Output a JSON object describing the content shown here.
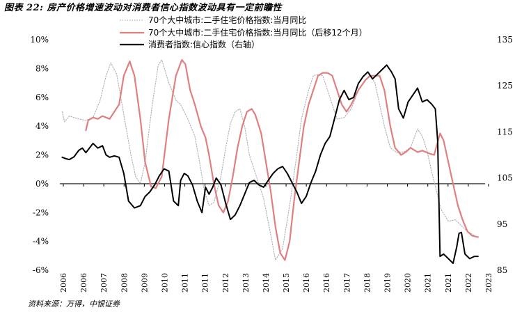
{
  "figure": {
    "title": "图表 22: 房产价格增速波动对消费者信心指数波动具有一定前瞻性",
    "source": "资料来源：万得，中银证券"
  },
  "chart_data": {
    "type": "line",
    "y_left": {
      "ticks": [
        "10%",
        "8%",
        "6%",
        "4%",
        "2%",
        "0%",
        "-2%",
        "-4%",
        "-6%"
      ],
      "range": [
        -6,
        10
      ]
    },
    "y_right": {
      "ticks": [
        "135",
        "125",
        "115",
        "105",
        "95",
        "85"
      ],
      "range": [
        85,
        135
      ]
    },
    "x_ticks": [
      "2006",
      "2006",
      "2007",
      "2008",
      "2009",
      "2010",
      "2011",
      "2011",
      "2012",
      "2013",
      "2014",
      "2015",
      "2016",
      "2016",
      "2017",
      "2018",
      "2019",
      "2020",
      "2021",
      "2021",
      "2022",
      "2023"
    ],
    "grid": false,
    "legend_position": "top",
    "series": [
      {
        "name": "70个大中城市:二手住宅价格指数:当月同比",
        "axis": "left",
        "color": "#b4b4be",
        "style": "dotted",
        "points": [
          [
            2006.0,
            5.0
          ],
          [
            2006.1,
            4.3
          ],
          [
            2006.3,
            4.7
          ],
          [
            2006.7,
            4.5
          ],
          [
            2007.0,
            4.4
          ],
          [
            2007.3,
            4.6
          ],
          [
            2007.6,
            5.8
          ],
          [
            2007.85,
            7.5
          ],
          [
            2008.05,
            8.4
          ],
          [
            2008.3,
            7.6
          ],
          [
            2008.6,
            4.8
          ],
          [
            2008.9,
            2.0
          ],
          [
            2009.1,
            0.5
          ],
          [
            2009.3,
            0.0
          ],
          [
            2009.5,
            1.5
          ],
          [
            2009.8,
            5.5
          ],
          [
            2010.05,
            8.2
          ],
          [
            2010.2,
            8.6
          ],
          [
            2010.5,
            7.0
          ],
          [
            2010.8,
            5.8
          ],
          [
            2011.0,
            5.5
          ],
          [
            2011.3,
            4.5
          ],
          [
            2011.6,
            3.3
          ],
          [
            2011.8,
            1.5
          ],
          [
            2012.0,
            -0.5
          ],
          [
            2012.2,
            -1.5
          ],
          [
            2012.4,
            -1.3
          ],
          [
            2012.7,
            0.5
          ],
          [
            2012.9,
            2.5
          ],
          [
            2013.1,
            4.2
          ],
          [
            2013.3,
            5.0
          ],
          [
            2013.5,
            5.2
          ],
          [
            2013.7,
            4.0
          ],
          [
            2013.9,
            2.0
          ],
          [
            2014.2,
            0.5
          ],
          [
            2014.5,
            -1.0
          ],
          [
            2014.8,
            -3.5
          ],
          [
            2015.0,
            -5.3
          ],
          [
            2015.3,
            -4.5
          ],
          [
            2015.6,
            -1.5
          ],
          [
            2015.9,
            2.0
          ],
          [
            2016.1,
            4.5
          ],
          [
            2016.4,
            6.5
          ],
          [
            2016.6,
            7.5
          ],
          [
            2016.8,
            7.6
          ],
          [
            2017.0,
            7.5
          ],
          [
            2017.3,
            6.0
          ],
          [
            2017.6,
            4.5
          ],
          [
            2017.9,
            4.6
          ],
          [
            2018.2,
            5.2
          ],
          [
            2018.5,
            6.5
          ],
          [
            2018.8,
            7.2
          ],
          [
            2019.0,
            7.5
          ],
          [
            2019.2,
            7.0
          ],
          [
            2019.4,
            5.5
          ],
          [
            2019.6,
            4.0
          ],
          [
            2019.85,
            2.5
          ],
          [
            2020.1,
            2.2
          ],
          [
            2020.4,
            2.2
          ],
          [
            2020.7,
            2.5
          ],
          [
            2021.0,
            3.8
          ],
          [
            2021.2,
            3.3
          ],
          [
            2021.4,
            2.3
          ],
          [
            2021.6,
            0.8
          ],
          [
            2021.8,
            -0.5
          ],
          [
            2022.0,
            -1.8
          ],
          [
            2022.3,
            -2.6
          ],
          [
            2022.6,
            -2.5
          ],
          [
            2022.9,
            -3.0
          ],
          [
            2023.1,
            -3.3
          ],
          [
            2023.4,
            -3.6
          ]
        ]
      },
      {
        "name": "70个大中城市:二手住宅价格指数:当月同比（后移12个月）",
        "axis": "left",
        "color": "#e07f80",
        "style": "solid",
        "points": [
          [
            2007.0,
            3.7
          ],
          [
            2007.1,
            4.4
          ],
          [
            2007.3,
            4.6
          ],
          [
            2007.5,
            4.5
          ],
          [
            2007.7,
            4.7
          ],
          [
            2008.0,
            4.5
          ],
          [
            2008.2,
            5.0
          ],
          [
            2008.4,
            5.5
          ],
          [
            2008.6,
            7.5
          ],
          [
            2008.85,
            8.5
          ],
          [
            2009.05,
            7.5
          ],
          [
            2009.3,
            4.5
          ],
          [
            2009.5,
            1.5
          ],
          [
            2009.75,
            -0.2
          ],
          [
            2009.95,
            -0.3
          ],
          [
            2010.2,
            0.5
          ],
          [
            2010.5,
            4.5
          ],
          [
            2010.8,
            7.5
          ],
          [
            2011.05,
            8.6
          ],
          [
            2011.2,
            8.3
          ],
          [
            2011.4,
            6.5
          ],
          [
            2011.6,
            5.5
          ],
          [
            2011.85,
            4.0
          ],
          [
            2012.05,
            3.2
          ],
          [
            2012.2,
            2.0
          ],
          [
            2012.4,
            0.0
          ],
          [
            2012.6,
            -1.5
          ],
          [
            2012.8,
            -2.0
          ],
          [
            2013.0,
            -1.2
          ],
          [
            2013.2,
            0.5
          ],
          [
            2013.4,
            2.5
          ],
          [
            2013.6,
            4.0
          ],
          [
            2013.8,
            5.0
          ],
          [
            2014.0,
            5.2
          ],
          [
            2014.15,
            4.8
          ],
          [
            2014.4,
            3.5
          ],
          [
            2014.6,
            1.5
          ],
          [
            2014.8,
            -0.5
          ],
          [
            2015.0,
            -3.0
          ],
          [
            2015.2,
            -4.8
          ],
          [
            2015.4,
            -5.3
          ],
          [
            2015.6,
            -4.0
          ],
          [
            2015.8,
            -1.0
          ],
          [
            2016.0,
            1.5
          ],
          [
            2016.2,
            4.0
          ],
          [
            2016.4,
            5.5
          ],
          [
            2016.6,
            6.5
          ],
          [
            2016.8,
            7.5
          ],
          [
            2017.0,
            7.7
          ],
          [
            2017.2,
            7.7
          ],
          [
            2017.4,
            7.5
          ],
          [
            2017.6,
            6.5
          ],
          [
            2017.8,
            5.5
          ],
          [
            2018.0,
            5.0
          ],
          [
            2018.2,
            5.5
          ],
          [
            2018.5,
            6.5
          ],
          [
            2018.8,
            7.2
          ],
          [
            2019.0,
            7.5
          ],
          [
            2019.2,
            7.5
          ],
          [
            2019.4,
            7.5
          ],
          [
            2019.6,
            6.5
          ],
          [
            2019.85,
            4.0
          ],
          [
            2020.05,
            2.5
          ],
          [
            2020.3,
            2.0
          ],
          [
            2020.5,
            2.2
          ],
          [
            2020.7,
            2.5
          ],
          [
            2021.0,
            2.2
          ],
          [
            2021.2,
            2.3
          ],
          [
            2021.5,
            2.1
          ],
          [
            2021.7,
            2.0
          ],
          [
            2021.95,
            3.5
          ],
          [
            2022.1,
            3.0
          ],
          [
            2022.3,
            1.5
          ],
          [
            2022.5,
            0.0
          ],
          [
            2022.7,
            -1.5
          ],
          [
            2022.9,
            -2.5
          ],
          [
            2023.1,
            -3.3
          ],
          [
            2023.3,
            -3.6
          ],
          [
            2023.55,
            -3.7
          ]
        ]
      },
      {
        "name": "消费者指数:信心指数（右轴）",
        "axis": "right",
        "color": "#000000",
        "style": "solid",
        "points": [
          [
            2006.0,
            109.5
          ],
          [
            2006.15,
            109.2
          ],
          [
            2006.3,
            109.0
          ],
          [
            2006.5,
            109.6
          ],
          [
            2006.7,
            111.0
          ],
          [
            2006.85,
            111.5
          ],
          [
            2007.0,
            110.5
          ],
          [
            2007.15,
            111.5
          ],
          [
            2007.3,
            112.5
          ],
          [
            2007.5,
            111.5
          ],
          [
            2007.7,
            112.0
          ],
          [
            2007.85,
            110.0
          ],
          [
            2008.0,
            109.5
          ],
          [
            2008.2,
            109.8
          ],
          [
            2008.4,
            109.5
          ],
          [
            2008.6,
            106.0
          ],
          [
            2008.8,
            100.0
          ],
          [
            2009.05,
            98.5
          ],
          [
            2009.3,
            99.0
          ],
          [
            2009.5,
            101.0
          ],
          [
            2009.7,
            102.0
          ],
          [
            2009.9,
            103.5
          ],
          [
            2010.1,
            105.5
          ],
          [
            2010.3,
            107.0
          ],
          [
            2010.5,
            106.5
          ],
          [
            2010.7,
            100.0
          ],
          [
            2010.9,
            99.0
          ],
          [
            2011.0,
            104.5
          ],
          [
            2011.15,
            106.0
          ],
          [
            2011.3,
            105.5
          ],
          [
            2011.5,
            103.5
          ],
          [
            2011.7,
            100.0
          ],
          [
            2011.9,
            97.5
          ],
          [
            2012.05,
            103.0
          ],
          [
            2012.2,
            101.5
          ],
          [
            2012.35,
            103.0
          ],
          [
            2012.5,
            105.0
          ],
          [
            2012.7,
            103.5
          ],
          [
            2012.9,
            99.5
          ],
          [
            2013.1,
            96.0
          ],
          [
            2013.3,
            97.0
          ],
          [
            2013.5,
            99.0
          ],
          [
            2013.7,
            101.5
          ],
          [
            2013.9,
            104.0
          ],
          [
            2014.1,
            104.5
          ],
          [
            2014.3,
            103.5
          ],
          [
            2014.5,
            103.0
          ],
          [
            2014.7,
            104.5
          ],
          [
            2014.9,
            106.0
          ],
          [
            2015.1,
            107.0
          ],
          [
            2015.3,
            107.5
          ],
          [
            2015.5,
            106.0
          ],
          [
            2015.7,
            104.0
          ],
          [
            2015.9,
            102.0
          ],
          [
            2016.1,
            99.5
          ],
          [
            2016.3,
            101.0
          ],
          [
            2016.5,
            104.0
          ],
          [
            2016.7,
            106.5
          ],
          [
            2016.9,
            110.0
          ],
          [
            2017.1,
            112.5
          ],
          [
            2017.3,
            114.0
          ],
          [
            2017.5,
            118.0
          ],
          [
            2017.7,
            122.0
          ],
          [
            2017.9,
            124.0
          ],
          [
            2018.1,
            122.0
          ],
          [
            2018.3,
            122.5
          ],
          [
            2018.5,
            125.5
          ],
          [
            2018.7,
            127.0
          ],
          [
            2018.9,
            128.0
          ],
          [
            2019.1,
            126.5
          ],
          [
            2019.3,
            127.5
          ],
          [
            2019.5,
            128.5
          ],
          [
            2019.7,
            129.5
          ],
          [
            2019.9,
            128.0
          ],
          [
            2020.05,
            126.5
          ],
          [
            2020.2,
            120.0
          ],
          [
            2020.4,
            118.0
          ],
          [
            2020.6,
            121.5
          ],
          [
            2020.8,
            123.0
          ],
          [
            2021.0,
            124.5
          ],
          [
            2021.2,
            121.5
          ],
          [
            2021.4,
            122.0
          ],
          [
            2021.6,
            121.0
          ],
          [
            2021.75,
            120.0
          ],
          [
            2021.85,
            113.0
          ],
          [
            2021.95,
            88.0
          ],
          [
            2022.1,
            88.5
          ],
          [
            2022.3,
            87.5
          ],
          [
            2022.5,
            86.5
          ],
          [
            2022.65,
            90.0
          ],
          [
            2022.75,
            93.0
          ],
          [
            2022.85,
            93.2
          ],
          [
            2023.0,
            88.5
          ],
          [
            2023.2,
            87.5
          ],
          [
            2023.4,
            88.0
          ],
          [
            2023.55,
            88.0
          ]
        ]
      }
    ]
  }
}
